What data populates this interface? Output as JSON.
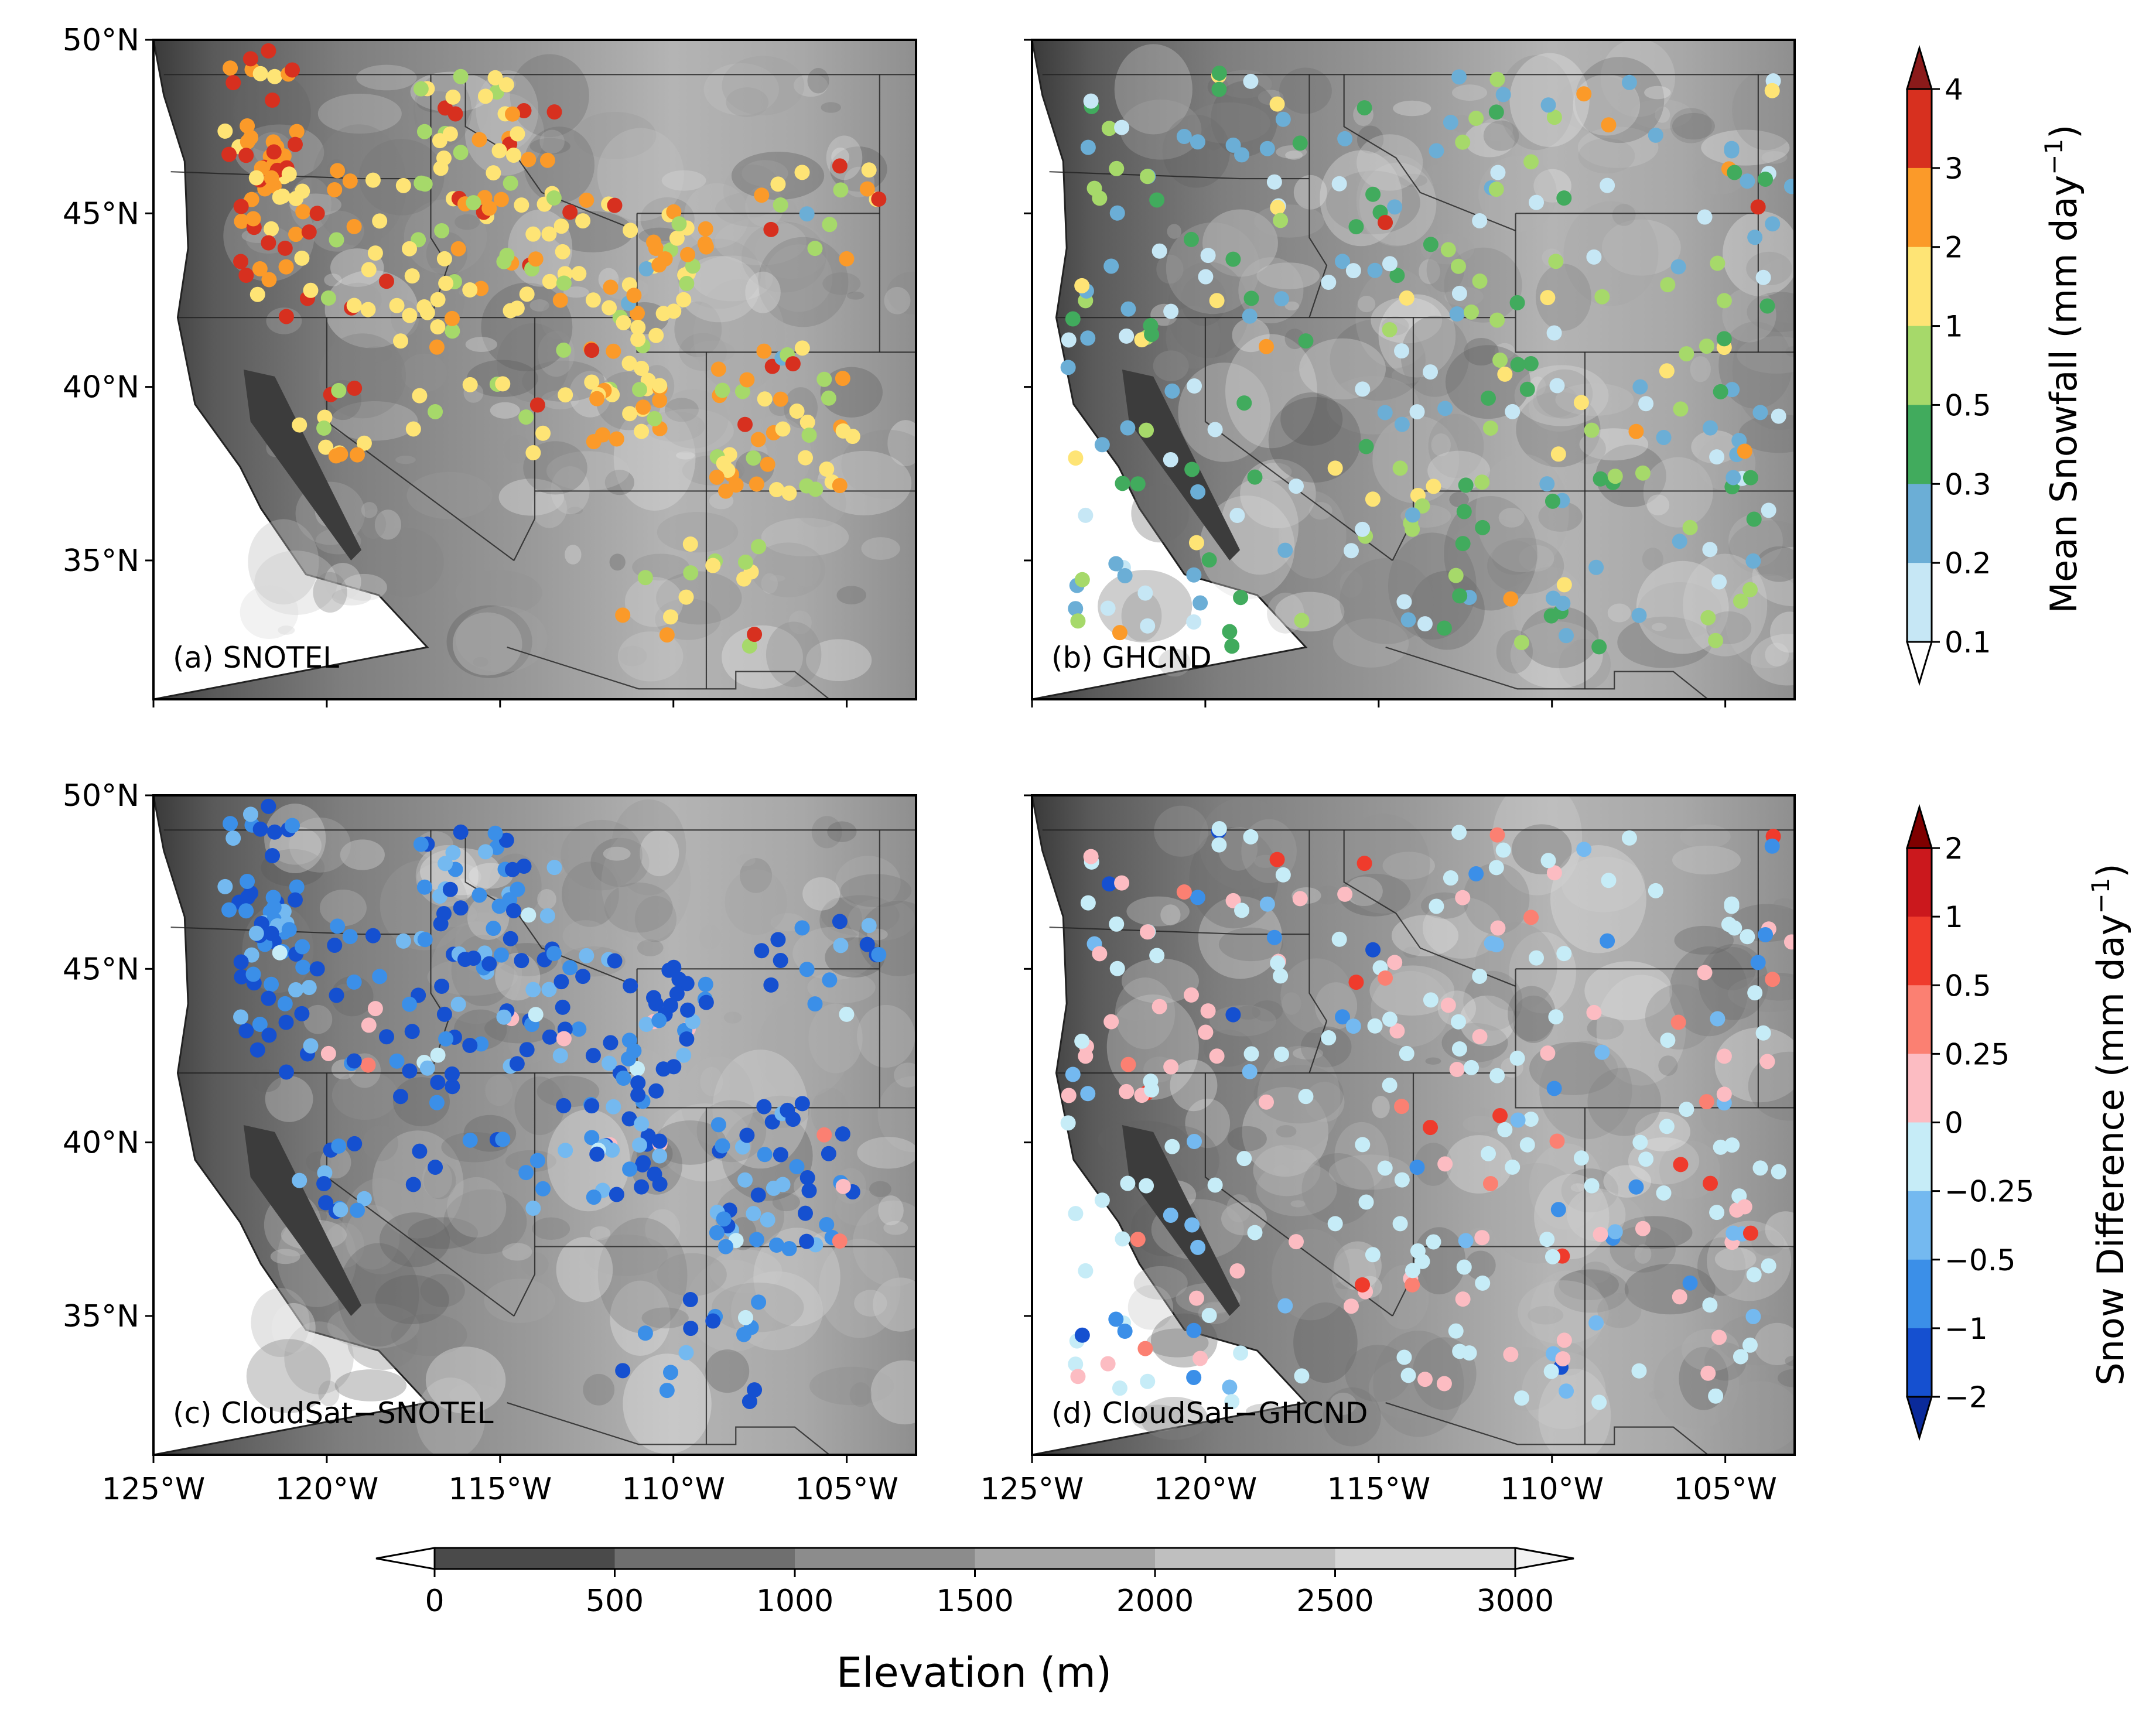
{
  "figure": {
    "lat_ticks": [
      "50°N",
      "45°N",
      "40°N",
      "35°N"
    ],
    "lon_ticks": [
      "125°W",
      "120°W",
      "115°W",
      "110°W",
      "105°W"
    ],
    "panels": [
      {
        "id": "a",
        "label": "(a) SNOTEL"
      },
      {
        "id": "b",
        "label": "(b) GHCND"
      },
      {
        "id": "c",
        "label": "(c) CloudSat−SNOTEL"
      },
      {
        "id": "d",
        "label": "(d) CloudSat−GHCND"
      }
    ]
  },
  "snowfall_colorbar": {
    "title": "Mean Snowfall (mm day",
    "title_sup": "−1",
    "title_end": ")",
    "ticks": [
      "4",
      "3",
      "2",
      "1",
      "0.5",
      "0.3",
      "0.2",
      "0.1"
    ],
    "colors": [
      "#d7301f",
      "#fb9a29",
      "#fee475",
      "#a6d96a",
      "#41ab5d",
      "#6baed6",
      "#c6e7f5"
    ],
    "under_color": "#ffffff",
    "over_color": "#8b1a1a"
  },
  "difference_colorbar": {
    "title": "Snow Difference (mm day",
    "title_sup": "−1",
    "title_end": ")",
    "ticks": [
      "2",
      "1",
      "0.5",
      "0.25",
      "0",
      "−0.25",
      "−0.5",
      "−1",
      "−2"
    ],
    "colors": [
      "#cb181d",
      "#ef3b2c",
      "#fb8072",
      "#fcbcc2",
      "#c6ecf7",
      "#74b9f0",
      "#3b8fe8",
      "#1550d0"
    ],
    "under_color": "#0a2a9a",
    "over_color": "#7f0000"
  },
  "elevation_colorbar": {
    "title": "Elevation (m)",
    "ticks": [
      "0",
      "500",
      "1000",
      "1500",
      "2000",
      "2500",
      "3000"
    ],
    "colors": [
      "#4a4a4a",
      "#6f6f6f",
      "#8c8c8c",
      "#a6a6a6",
      "#bfbfbf",
      "#d6d6d6"
    ],
    "under_color": "#ffffff",
    "over_color": "#f2f2f2"
  },
  "chart_data": {
    "type": "scatter",
    "description": "Station point maps over Western US terrain",
    "xlim": [
      -125,
      -103
    ],
    "ylim": [
      31,
      50
    ],
    "series": [
      {
        "name": "(a) SNOTEL",
        "variable": "Mean Snowfall (mm day^-1)",
        "typical_range": [
          1,
          4
        ]
      },
      {
        "name": "(b) GHCND",
        "variable": "Mean Snowfall (mm day^-1)",
        "typical_range": [
          0.1,
          1
        ]
      },
      {
        "name": "(c) CloudSat−SNOTEL",
        "variable": "Snow Difference (mm day^-1)",
        "typical_range": [
          -2,
          -0.25
        ]
      },
      {
        "name": "(d) CloudSat−GHCND",
        "variable": "Snow Difference (mm day^-1)",
        "typical_range": [
          -0.5,
          0.5
        ]
      }
    ]
  }
}
